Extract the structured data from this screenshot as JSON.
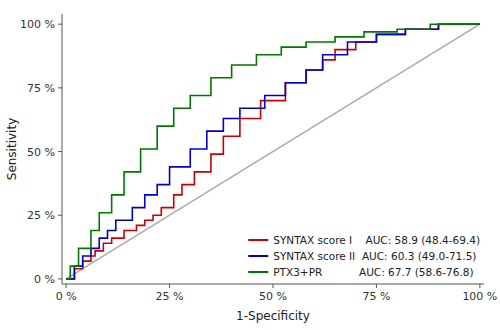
{
  "chart_data": {
    "type": "line",
    "title": "",
    "xlabel": "1-Specificity",
    "ylabel": "Sensitivity",
    "xlim": [
      -0.01,
      1.01
    ],
    "ylim": [
      -0.02,
      1.04
    ],
    "xticks": [
      {
        "value": 0,
        "label": "0 %"
      },
      {
        "value": 0.25,
        "label": "25 %"
      },
      {
        "value": 0.5,
        "label": "50 %"
      },
      {
        "value": 0.75,
        "label": "75 %"
      },
      {
        "value": 1,
        "label": "100 %"
      }
    ],
    "yticks": [
      {
        "value": 0,
        "label": "0 %"
      },
      {
        "value": 0.25,
        "label": "25 %"
      },
      {
        "value": 0.5,
        "label": "50 %"
      },
      {
        "value": 0.75,
        "label": "75 %"
      },
      {
        "value": 1,
        "label": "100 %"
      }
    ],
    "grid": false,
    "legend": "lower right",
    "diagonal": {
      "x": [
        0,
        1
      ],
      "values": [
        0,
        1
      ],
      "color": "#aaaaaa"
    },
    "series": [
      {
        "name": "SYNTAX score I    AUC: 58.9 (48.4-69.4)",
        "color": "#cc0000",
        "x": [
          0.0,
          0.02,
          0.02,
          0.04,
          0.04,
          0.06,
          0.06,
          0.07,
          0.07,
          0.09,
          0.09,
          0.11,
          0.11,
          0.14,
          0.14,
          0.17,
          0.17,
          0.19,
          0.19,
          0.21,
          0.21,
          0.23,
          0.23,
          0.26,
          0.26,
          0.28,
          0.28,
          0.31,
          0.31,
          0.35,
          0.35,
          0.38,
          0.38,
          0.42,
          0.42,
          0.47,
          0.47,
          0.53,
          0.53,
          0.58,
          0.58,
          0.62,
          0.62,
          0.65,
          0.65,
          0.7,
          0.7,
          0.75,
          0.75,
          0.82,
          0.82,
          0.9,
          0.9,
          0.95,
          0.95,
          1.0
        ],
        "values": [
          0.0,
          0.0,
          0.04,
          0.04,
          0.07,
          0.07,
          0.09,
          0.09,
          0.11,
          0.11,
          0.14,
          0.14,
          0.16,
          0.16,
          0.19,
          0.19,
          0.21,
          0.21,
          0.23,
          0.23,
          0.25,
          0.25,
          0.28,
          0.28,
          0.33,
          0.33,
          0.37,
          0.37,
          0.42,
          0.42,
          0.49,
          0.49,
          0.56,
          0.56,
          0.63,
          0.63,
          0.7,
          0.7,
          0.77,
          0.77,
          0.82,
          0.82,
          0.86,
          0.86,
          0.9,
          0.9,
          0.93,
          0.93,
          0.96,
          0.96,
          0.98,
          0.98,
          1.0,
          1.0,
          1.0,
          1.0
        ]
      },
      {
        "name": "SYNTAX score II  AUC: 60.3 (49.0-71.5)",
        "color": "#0000cc",
        "x": [
          0.0,
          0.02,
          0.02,
          0.04,
          0.04,
          0.06,
          0.06,
          0.08,
          0.08,
          0.1,
          0.1,
          0.12,
          0.12,
          0.16,
          0.16,
          0.19,
          0.19,
          0.22,
          0.22,
          0.25,
          0.25,
          0.3,
          0.3,
          0.34,
          0.34,
          0.38,
          0.38,
          0.42,
          0.42,
          0.48,
          0.48,
          0.53,
          0.53,
          0.58,
          0.58,
          0.62,
          0.62,
          0.68,
          0.68,
          0.75,
          0.75,
          0.82,
          0.82,
          0.9,
          0.9,
          1.0
        ],
        "values": [
          0.0,
          0.0,
          0.05,
          0.05,
          0.09,
          0.09,
          0.12,
          0.12,
          0.16,
          0.16,
          0.19,
          0.19,
          0.23,
          0.23,
          0.28,
          0.28,
          0.33,
          0.33,
          0.37,
          0.37,
          0.44,
          0.44,
          0.51,
          0.51,
          0.58,
          0.58,
          0.63,
          0.63,
          0.67,
          0.67,
          0.72,
          0.72,
          0.77,
          0.77,
          0.82,
          0.82,
          0.88,
          0.88,
          0.93,
          0.93,
          0.96,
          0.96,
          0.98,
          0.98,
          1.0,
          1.0
        ]
      },
      {
        "name": "PTX3+PR           AUC: 67.7 (58.6-76.8)",
        "color": "#007700",
        "x": [
          0.0,
          0.01,
          0.01,
          0.03,
          0.03,
          0.06,
          0.06,
          0.08,
          0.08,
          0.11,
          0.11,
          0.14,
          0.14,
          0.18,
          0.18,
          0.22,
          0.22,
          0.26,
          0.26,
          0.3,
          0.3,
          0.35,
          0.35,
          0.4,
          0.4,
          0.46,
          0.46,
          0.52,
          0.52,
          0.58,
          0.58,
          0.65,
          0.65,
          0.72,
          0.72,
          0.8,
          0.8,
          0.88,
          0.88,
          0.95,
          0.95,
          1.0
        ],
        "values": [
          0.0,
          0.0,
          0.05,
          0.05,
          0.12,
          0.12,
          0.19,
          0.19,
          0.26,
          0.26,
          0.33,
          0.33,
          0.42,
          0.42,
          0.51,
          0.51,
          0.6,
          0.6,
          0.67,
          0.67,
          0.72,
          0.72,
          0.79,
          0.79,
          0.84,
          0.84,
          0.88,
          0.88,
          0.91,
          0.91,
          0.93,
          0.93,
          0.95,
          0.95,
          0.97,
          0.97,
          0.98,
          0.98,
          1.0,
          1.0,
          1.0,
          1.0
        ]
      }
    ]
  }
}
